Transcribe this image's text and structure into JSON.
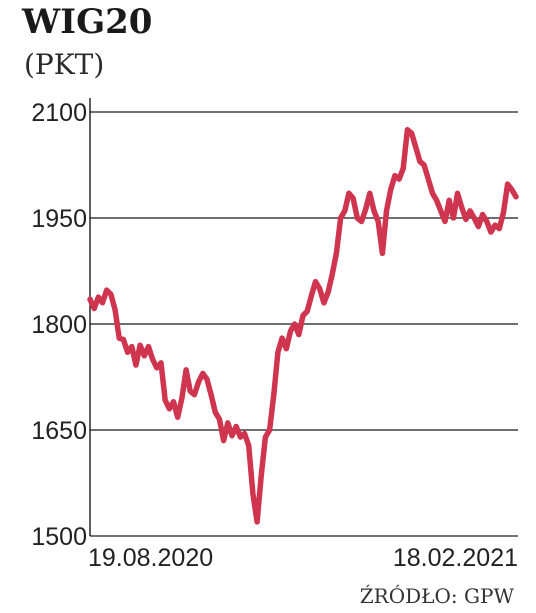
{
  "chart_data": {
    "type": "line",
    "title": "WIG20",
    "subtitle": "(PKT)",
    "ylim": [
      1500,
      2100
    ],
    "yticks": [
      2100,
      1950,
      1800,
      1650,
      1500
    ],
    "grid": "horizontal",
    "x_labels": [
      "19.08.2020",
      "18.02.2021"
    ],
    "line_color": "#d0354f",
    "series": [
      {
        "values": [
          1835,
          1822,
          1838,
          1830,
          1848,
          1842,
          1820,
          1780,
          1778,
          1760,
          1768,
          1742,
          1770,
          1755,
          1768,
          1750,
          1738,
          1745,
          1692,
          1680,
          1690,
          1668,
          1695,
          1735,
          1705,
          1700,
          1718,
          1730,
          1722,
          1700,
          1675,
          1665,
          1635,
          1660,
          1642,
          1655,
          1640,
          1645,
          1628,
          1560,
          1520,
          1585,
          1640,
          1650,
          1700,
          1760,
          1780,
          1765,
          1790,
          1800,
          1785,
          1812,
          1818,
          1840,
          1860,
          1850,
          1830,
          1845,
          1870,
          1900,
          1950,
          1960,
          1985,
          1978,
          1950,
          1945,
          1962,
          1985,
          1960,
          1945,
          1900,
          1960,
          1990,
          2010,
          2005,
          2020,
          2075,
          2070,
          2050,
          2030,
          2025,
          2005,
          1985,
          1975,
          1960,
          1945,
          1975,
          1950,
          1985,
          1965,
          1948,
          1960,
          1950,
          1938,
          1955,
          1945,
          1930,
          1940,
          1935,
          1958,
          1998,
          1990,
          1980
        ]
      }
    ],
    "source": "ŹRÓDŁO: GPW"
  }
}
